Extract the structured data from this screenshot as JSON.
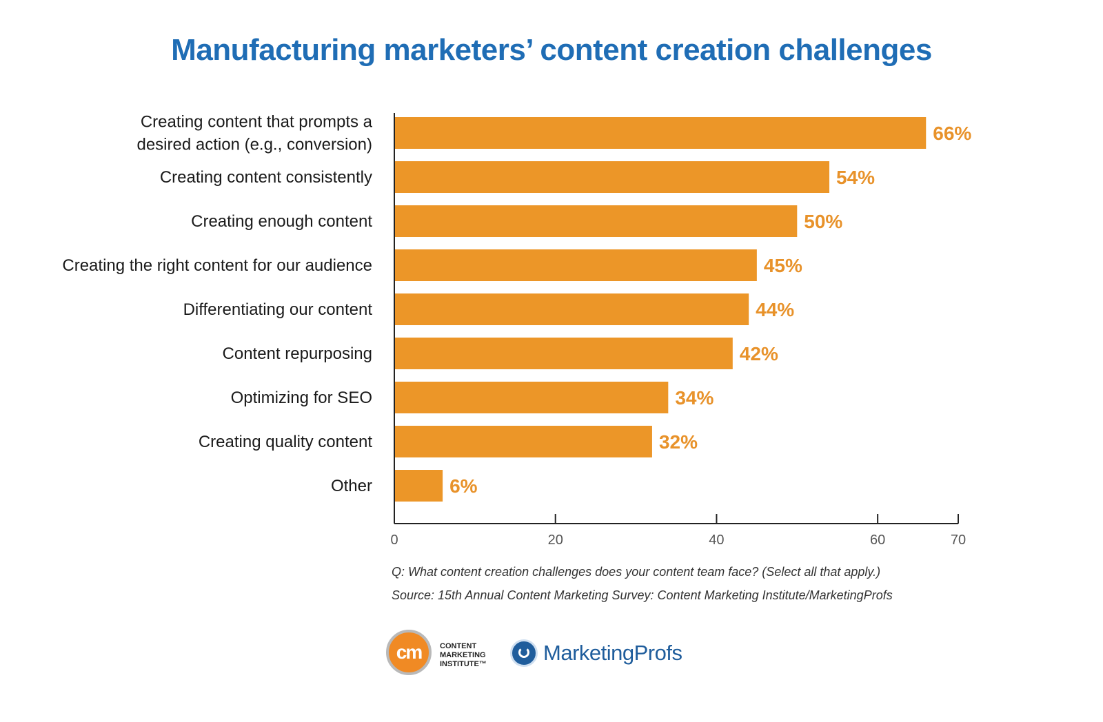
{
  "header": {
    "title": "Manufacturing marketers’ content creation challenges"
  },
  "chart_data": {
    "type": "bar",
    "orientation": "horizontal",
    "categories": [
      [
        "Creating content that prompts a",
        "desired action (e.g., conversion)"
      ],
      [
        "Creating content consistently"
      ],
      [
        "Creating enough content"
      ],
      [
        "Creating the right content for our audience"
      ],
      [
        "Differentiating our content"
      ],
      [
        "Content repurposing"
      ],
      [
        "Optimizing for SEO"
      ],
      [
        "Creating quality content"
      ],
      [
        "Other"
      ]
    ],
    "values": [
      66,
      54,
      50,
      45,
      44,
      42,
      34,
      32,
      6
    ],
    "value_labels": [
      "66%",
      "54%",
      "50%",
      "45%",
      "44%",
      "42%",
      "34%",
      "32%",
      "6%"
    ],
    "xlim": [
      0,
      70
    ],
    "ticks": [
      0,
      20,
      40,
      60,
      70
    ],
    "tick_labels": [
      "0",
      "20",
      "40",
      "60",
      "70"
    ],
    "bar_color": "#ec9628",
    "label_color": "#e8922a",
    "grid": false,
    "legend": "none"
  },
  "footer": {
    "question": "Q: What content creation challenges does your content team face? (Select all that apply.)",
    "source": "Source: 15th Annual Content Marketing Survey: Content Marketing Institute/MarketingProfs"
  },
  "logos": {
    "cmi": {
      "mark": "cm",
      "line1": "CONTENT",
      "line2": "MARKETING",
      "line3": "INSTITUTE™"
    },
    "marketingprofs": {
      "icon": "marketingprofs-bird-icon",
      "text": "MarketingProfs"
    }
  }
}
